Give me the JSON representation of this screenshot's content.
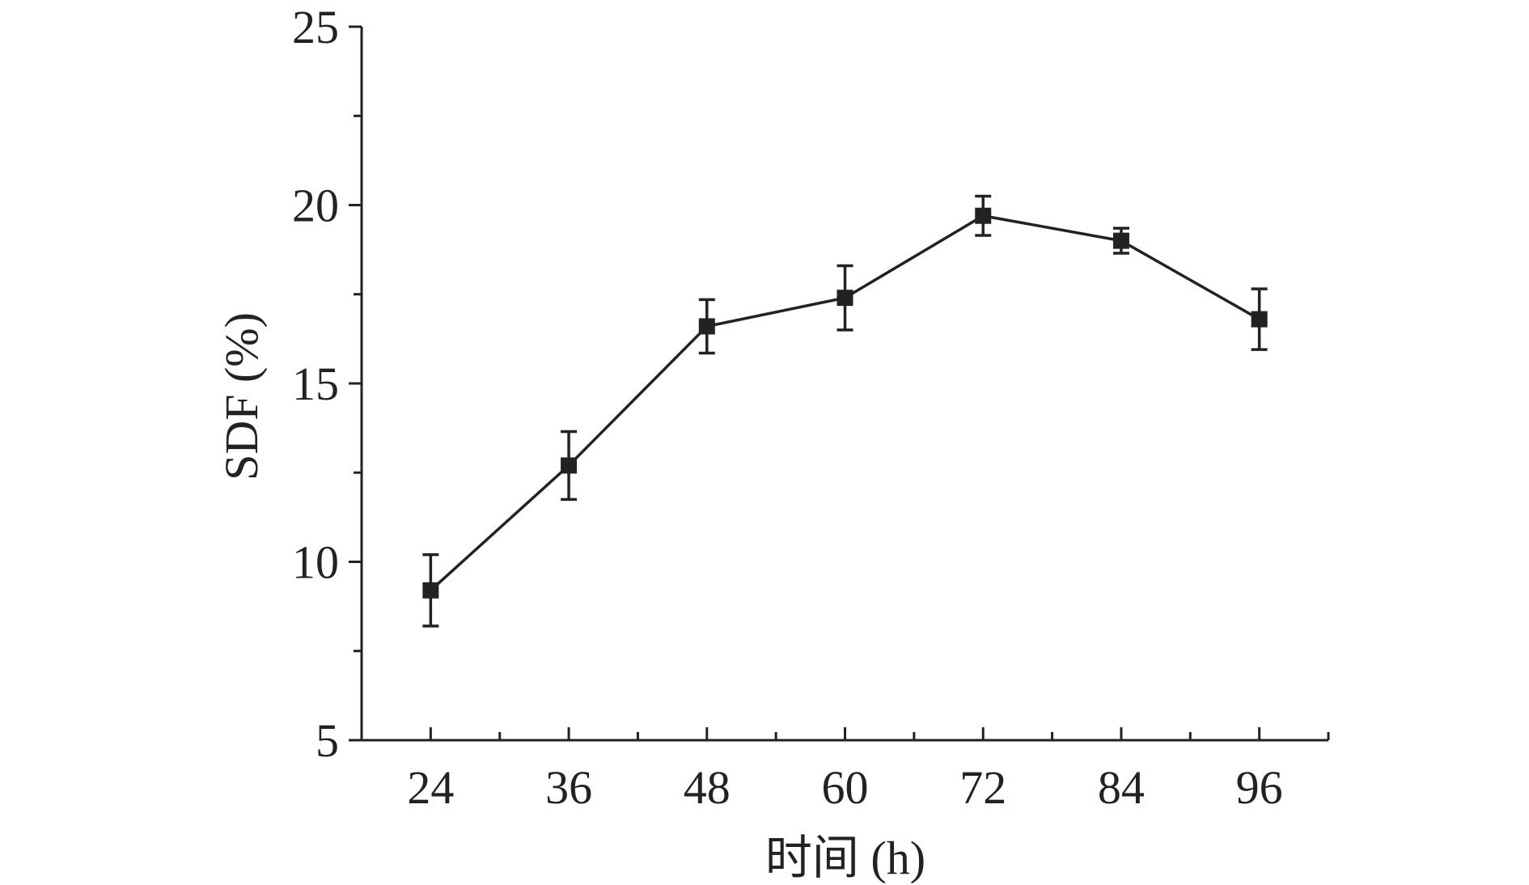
{
  "chart_data": {
    "type": "line",
    "xlabel": "时间 (h)",
    "ylabel": "SDF (%)",
    "x": [
      24,
      36,
      48,
      60,
      72,
      84,
      96
    ],
    "xlim": [
      18,
      102
    ],
    "ylim": [
      5,
      25
    ],
    "xticks": [
      24,
      36,
      48,
      60,
      72,
      84,
      96
    ],
    "yticks": [
      5,
      10,
      15,
      20,
      25
    ],
    "grid": false,
    "series": [
      {
        "values": [
          9.2,
          12.7,
          16.6,
          17.4,
          19.7,
          19.0,
          16.8
        ],
        "errors": [
          1.0,
          0.95,
          0.75,
          0.9,
          0.55,
          0.35,
          0.85
        ],
        "marker": "square",
        "color": "#222222"
      }
    ]
  }
}
